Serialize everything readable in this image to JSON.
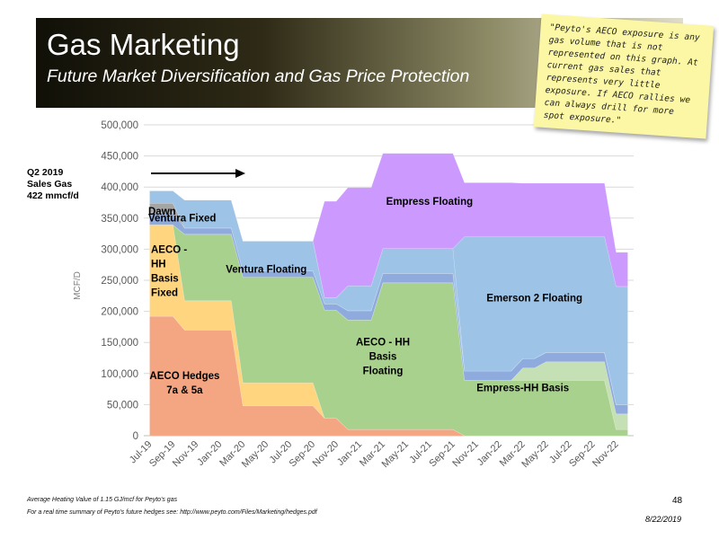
{
  "slide": {
    "title": "Gas Marketing",
    "subtitle": "Future Market Diversification and Gas Price Protection",
    "note": "\"Peyto's AECO exposure is any gas volume that is not represented on this graph. At current gas sales that represents very little exposure. If AECO rallies we can always drill for more spot exposure.\"",
    "sales_label_lines": [
      "Q2 2019",
      "Sales Gas",
      "422 mmcf/d"
    ],
    "footnote_1": "Average Heating Value of 1.15 GJ/mcf for Peyto's gas",
    "footnote_2": "For a real time summary of Peyto's future hedges see: http://www.peyto.com/Files/Marketing/hedges.pdf",
    "page_number": "48",
    "date": "8/22/2019"
  },
  "chart_data": {
    "type": "area",
    "stacked": true,
    "ylabel": "MCF/D",
    "xlabel": "",
    "ylim": [
      0,
      500000
    ],
    "yticks": [
      0,
      50000,
      100000,
      150000,
      200000,
      250000,
      300000,
      350000,
      400000,
      450000,
      500000
    ],
    "ytick_labels": [
      "0",
      "50,000",
      "100,000",
      "150,000",
      "200,000",
      "250,000",
      "300,000",
      "350,000",
      "400,000",
      "450,000",
      "500,000"
    ],
    "grid": true,
    "x": [
      "Jul-19",
      "Aug-19",
      "Sep-19",
      "Oct-19",
      "Nov-19",
      "Dec-19",
      "Jan-20",
      "Feb-20",
      "Mar-20",
      "Apr-20",
      "May-20",
      "Jun-20",
      "Jul-20",
      "Aug-20",
      "Sep-20",
      "Oct-20",
      "Nov-20",
      "Dec-20",
      "Jan-21",
      "Feb-21",
      "Mar-21",
      "Apr-21",
      "May-21",
      "Jun-21",
      "Jul-21",
      "Aug-21",
      "Sep-21",
      "Oct-21",
      "Nov-21",
      "Dec-21",
      "Jan-22",
      "Feb-22",
      "Mar-22",
      "Apr-22",
      "May-22",
      "Jun-22",
      "Jul-22",
      "Aug-22",
      "Sep-22",
      "Oct-22",
      "Nov-22",
      "Dec-22"
    ],
    "x_tick_labels": [
      "Jul-19",
      "Sep-19",
      "Nov-19",
      "Jan-20",
      "Mar-20",
      "May-20",
      "Jul-20",
      "Sep-20",
      "Nov-20",
      "Jan-21",
      "Mar-21",
      "May-21",
      "Jul-21",
      "Sep-21",
      "Nov-21",
      "Jan-22",
      "Mar-22",
      "May-22",
      "Jul-22",
      "Sep-22",
      "Nov-22"
    ],
    "series": [
      {
        "name": "AECO Hedges 7a & 5a",
        "label_lines": [
          "AECO Hedges",
          "7a & 5a"
        ],
        "color": "#f4a582",
        "values": [
          192000,
          192000,
          192000,
          170000,
          170000,
          170000,
          170000,
          170000,
          48000,
          48000,
          48000,
          48000,
          48000,
          48000,
          48000,
          28000,
          28000,
          10000,
          10000,
          10000,
          10000,
          10000,
          10000,
          10000,
          10000,
          10000,
          10000,
          0,
          0,
          0,
          0,
          0,
          0,
          0,
          0,
          0,
          0,
          0,
          0,
          0,
          0,
          0
        ]
      },
      {
        "name": "AECO - HH Basis Fixed",
        "label_lines": [
          "AECO -",
          "HH",
          "Basis",
          "Fixed"
        ],
        "color": "#ffd580",
        "values": [
          147000,
          147000,
          147000,
          47000,
          47000,
          47000,
          47000,
          47000,
          37000,
          37000,
          37000,
          37000,
          37000,
          37000,
          37000,
          0,
          0,
          0,
          0,
          0,
          0,
          0,
          0,
          0,
          0,
          0,
          0,
          0,
          0,
          0,
          0,
          0,
          0,
          0,
          0,
          0,
          0,
          0,
          0,
          0,
          0,
          0
        ]
      },
      {
        "name": "AECO - HH Basis Floating",
        "label_lines": [
          "AECO - HH",
          "Basis",
          "Floating"
        ],
        "color": "#a9d18e",
        "values": [
          0,
          0,
          0,
          107000,
          107000,
          107000,
          107000,
          107000,
          170000,
          170000,
          170000,
          170000,
          170000,
          170000,
          170000,
          174000,
          174000,
          176000,
          176000,
          176000,
          236000,
          236000,
          236000,
          236000,
          236000,
          236000,
          236000,
          89000,
          89000,
          89000,
          89000,
          89000,
          89000,
          89000,
          89000,
          89000,
          89000,
          89000,
          89000,
          89000,
          10000,
          10000
        ]
      },
      {
        "name": "Empress-HH Basis",
        "label_lines": [
          "Empress-HH Basis"
        ],
        "color": "#c5e0b4",
        "values": [
          0,
          0,
          0,
          0,
          0,
          0,
          0,
          0,
          0,
          0,
          0,
          0,
          0,
          0,
          0,
          0,
          0,
          0,
          0,
          0,
          0,
          0,
          0,
          0,
          0,
          0,
          0,
          0,
          0,
          0,
          0,
          0,
          20000,
          20000,
          30000,
          30000,
          30000,
          30000,
          30000,
          30000,
          25000,
          25000
        ]
      },
      {
        "name": "Ventura Fixed",
        "label_lines": [
          "Ventura Fixed"
        ],
        "color": "#8faadc",
        "values": [
          20000,
          20000,
          20000,
          10000,
          10000,
          10000,
          10000,
          10000,
          10000,
          10000,
          10000,
          10000,
          10000,
          10000,
          10000,
          10000,
          10000,
          15000,
          15000,
          15000,
          15000,
          15000,
          15000,
          15000,
          15000,
          15000,
          15000,
          15000,
          15000,
          15000,
          15000,
          15000,
          15000,
          15000,
          15000,
          15000,
          15000,
          15000,
          15000,
          15000,
          15000,
          15000
        ]
      },
      {
        "name": "Dawn",
        "label_lines": [
          "Dawn"
        ],
        "color": "#a5a5a5",
        "values": [
          15000,
          15000,
          15000,
          0,
          0,
          0,
          0,
          0,
          0,
          0,
          0,
          0,
          0,
          0,
          0,
          0,
          0,
          0,
          0,
          0,
          0,
          0,
          0,
          0,
          0,
          0,
          0,
          0,
          0,
          0,
          0,
          0,
          0,
          0,
          0,
          0,
          0,
          0,
          0,
          0,
          0,
          0
        ]
      },
      {
        "name": "Ventura Floating",
        "label_lines": [
          "Ventura Floating"
        ],
        "color": "#9dc3e6",
        "values": [
          20000,
          20000,
          20000,
          45000,
          45000,
          45000,
          45000,
          45000,
          48000,
          48000,
          48000,
          48000,
          48000,
          48000,
          48000,
          10000,
          10000,
          40000,
          40000,
          40000,
          40000,
          40000,
          40000,
          40000,
          40000,
          40000,
          40000,
          0,
          0,
          0,
          0,
          0,
          0,
          0,
          0,
          0,
          0,
          0,
          0,
          0,
          0,
          0
        ]
      },
      {
        "name": "Emerson 2 Floating",
        "label_lines": [
          "Emerson 2 Floating"
        ],
        "color": "#9dc3e6",
        "values": [
          0,
          0,
          0,
          0,
          0,
          0,
          0,
          0,
          0,
          0,
          0,
          0,
          0,
          0,
          0,
          0,
          0,
          0,
          0,
          0,
          0,
          0,
          0,
          0,
          0,
          0,
          0,
          216000,
          216000,
          216000,
          216000,
          216000,
          196000,
          196000,
          186000,
          186000,
          186000,
          186000,
          186000,
          186000,
          190000,
          190000
        ]
      },
      {
        "name": "Empress Floating",
        "label_lines": [
          "Empress Floating"
        ],
        "color": "#cc99ff",
        "values": [
          0,
          0,
          0,
          0,
          0,
          0,
          0,
          0,
          0,
          0,
          0,
          0,
          0,
          0,
          0,
          155000,
          155000,
          158000,
          158000,
          158000,
          153000,
          153000,
          153000,
          153000,
          153000,
          153000,
          153000,
          87000,
          87000,
          87000,
          87000,
          87000,
          86000,
          86000,
          86000,
          86000,
          86000,
          86000,
          86000,
          86000,
          55000,
          55000
        ]
      }
    ]
  }
}
